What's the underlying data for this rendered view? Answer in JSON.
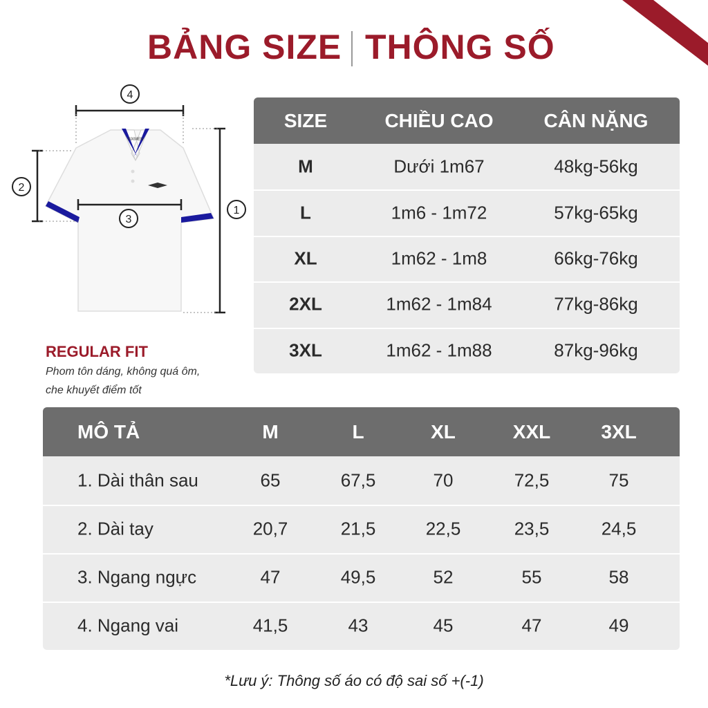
{
  "header": {
    "title_left": "BẢNG SIZE",
    "title_right": "THÔNG SỐ"
  },
  "diagram": {
    "markers": [
      "1",
      "2",
      "3",
      "4"
    ],
    "brand": "SIXMEN"
  },
  "fit": {
    "title": "REGULAR FIT",
    "description": [
      "Phom tôn dáng, không quá ôm,",
      "che khuyết điểm tốt"
    ]
  },
  "size_table": {
    "columns": [
      "SIZE",
      "CHIỀU CAO",
      "CÂN NẶNG"
    ],
    "rows": [
      [
        "M",
        "Dưới 1m67",
        "48kg-56kg"
      ],
      [
        "L",
        "1m6 - 1m72",
        "57kg-65kg"
      ],
      [
        "XL",
        "1m62 - 1m8",
        "66kg-76kg"
      ],
      [
        "2XL",
        "1m62 - 1m84",
        "77kg-86kg"
      ],
      [
        "3XL",
        "1m62 - 1m88",
        "87kg-96kg"
      ]
    ]
  },
  "measure_table": {
    "columns": [
      "MÔ TẢ",
      "M",
      "L",
      "XL",
      "XXL",
      "3XL"
    ],
    "rows": [
      [
        "1. Dài thân sau",
        "65",
        "67,5",
        "70",
        "72,5",
        "75"
      ],
      [
        "2. Dài tay",
        "20,7",
        "21,5",
        "22,5",
        "23,5",
        "24,5"
      ],
      [
        "3. Ngang ngực",
        "47",
        "49,5",
        "52",
        "55",
        "58"
      ],
      [
        "4. Ngang vai",
        "41,5",
        "43",
        "45",
        "47",
        "49"
      ]
    ]
  },
  "note": "*Lưu ý: Thông số áo có độ sai số +(-1)"
}
